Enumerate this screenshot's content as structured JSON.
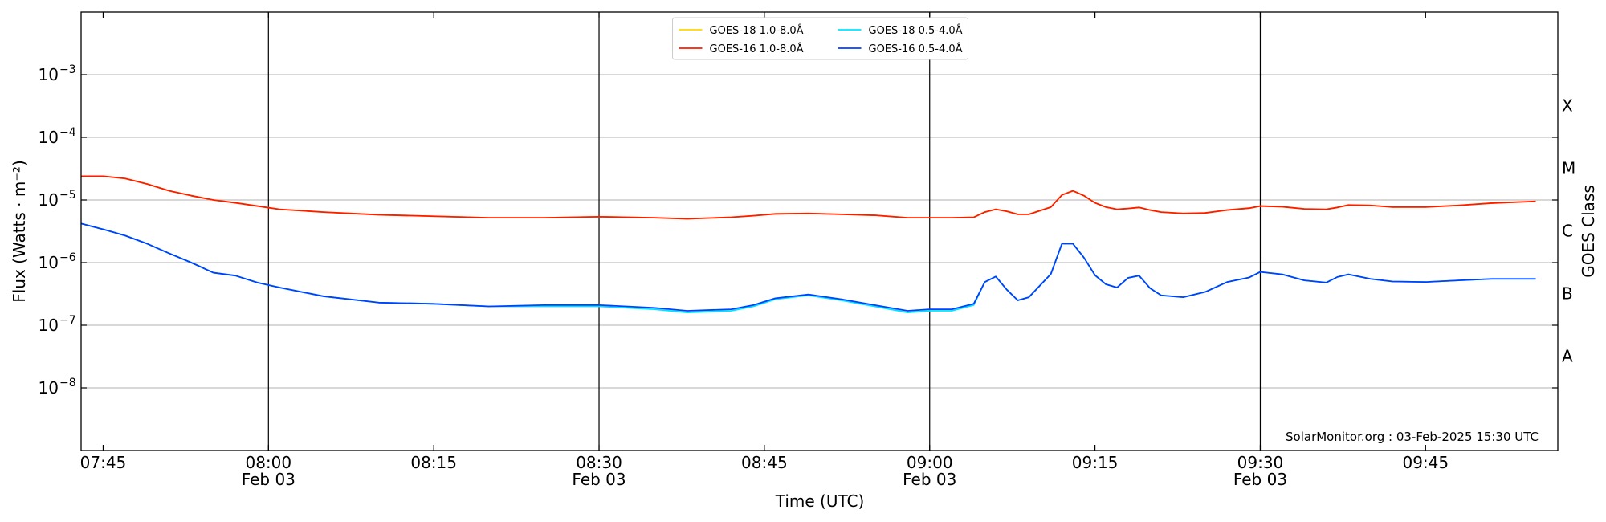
{
  "chart_data": {
    "type": "line",
    "xlabel": "Time (UTC)",
    "ylabel": "Flux (Watts · m⁻²)",
    "right_ylabel": "GOES Class",
    "annotation": "SolarMonitor.org : 03-Feb-2025 15:30 UTC",
    "log_scale": true,
    "grid": true,
    "legend": "upper center",
    "x": [
      "07:43",
      "07:45",
      "07:47",
      "07:49",
      "07:51",
      "07:53",
      "07:55",
      "07:57",
      "07:59",
      "08:01",
      "08:05",
      "08:10",
      "08:15",
      "08:20",
      "08:25",
      "08:30",
      "08:35",
      "08:38",
      "08:42",
      "08:44",
      "08:46",
      "08:49",
      "08:52",
      "08:55",
      "08:58",
      "09:00",
      "09:02",
      "09:04",
      "09:05",
      "09:06",
      "09:07",
      "09:08",
      "09:09",
      "09:11",
      "09:12",
      "09:13",
      "09:14",
      "09:15",
      "09:16",
      "09:17",
      "09:18",
      "09:19",
      "09:20",
      "09:21",
      "09:23",
      "09:25",
      "09:27",
      "09:29",
      "09:30",
      "09:32",
      "09:34",
      "09:36",
      "09:37",
      "09:38",
      "09:40",
      "09:42",
      "09:45",
      "09:48",
      "09:51",
      "09:55"
    ],
    "xlim": [
      "07:43",
      "09:57"
    ],
    "xticks": [
      "07:45",
      "08:00",
      "08:15",
      "08:30",
      "08:45",
      "09:00",
      "09:15",
      "09:30",
      "09:45"
    ],
    "date_labels": [
      {
        "x": "08:00",
        "label": "Feb 03"
      },
      {
        "x": "08:30",
        "label": "Feb 03"
      },
      {
        "x": "09:00",
        "label": "Feb 03"
      },
      {
        "x": "09:30",
        "label": "Feb 03"
      }
    ],
    "vlines": [
      "08:00",
      "08:30",
      "09:00",
      "09:30"
    ],
    "ylim": [
      1e-09,
      0.01
    ],
    "yticks": [
      {
        "value": 1e-08,
        "label": "10",
        "exponent": "−8"
      },
      {
        "value": 1e-07,
        "label": "10",
        "exponent": "−7"
      },
      {
        "value": 1e-06,
        "label": "10",
        "exponent": "−6"
      },
      {
        "value": 1e-05,
        "label": "10",
        "exponent": "−5"
      },
      {
        "value": 0.0001,
        "label": "10",
        "exponent": "−4"
      },
      {
        "value": 0.001,
        "label": "10",
        "exponent": "−3"
      }
    ],
    "class_labels": [
      {
        "value": 3.2e-08,
        "label": "A"
      },
      {
        "value": 3.2e-07,
        "label": "B"
      },
      {
        "value": 3.2e-06,
        "label": "C"
      },
      {
        "value": 3.2e-05,
        "label": "M"
      },
      {
        "value": 0.00032,
        "label": "X"
      }
    ],
    "series": [
      {
        "name": "GOES-18 1.0-8.0Å",
        "color": "#ffd700",
        "values": [
          2.4e-05,
          2.4e-05,
          2.2e-05,
          1.8e-05,
          1.4e-05,
          1.17e-05,
          1e-05,
          9e-06,
          8e-06,
          7.1e-06,
          6.4e-06,
          5.8e-06,
          5.5e-06,
          5.2e-06,
          5.2e-06,
          5.4e-06,
          5.2e-06,
          5e-06,
          5.3e-06,
          5.6e-06,
          6e-06,
          6.1e-06,
          5.9e-06,
          5.7e-06,
          5.2e-06,
          5.2e-06,
          5.2e-06,
          5.3e-06,
          6.4e-06,
          7.1e-06,
          6.6e-06,
          5.9e-06,
          5.9e-06,
          7.7e-06,
          1.2e-05,
          1.4e-05,
          1.17e-05,
          9e-06,
          7.7e-06,
          7.1e-06,
          7.3e-06,
          7.6e-06,
          6.9e-06,
          6.4e-06,
          6.1e-06,
          6.2e-06,
          6.9e-06,
          7.4e-06,
          8e-06,
          7.8e-06,
          7.2e-06,
          7.1e-06,
          7.6e-06,
          8.3e-06,
          8.2e-06,
          7.7e-06,
          7.7e-06,
          8.2e-06,
          8.9e-06,
          9.5e-06
        ]
      },
      {
        "name": "GOES-16 1.0-8.0Å",
        "color": "#ff1a00",
        "values": [
          2.4e-05,
          2.4e-05,
          2.2e-05,
          1.8e-05,
          1.4e-05,
          1.17e-05,
          1e-05,
          9e-06,
          8e-06,
          7.1e-06,
          6.4e-06,
          5.8e-06,
          5.5e-06,
          5.2e-06,
          5.2e-06,
          5.4e-06,
          5.2e-06,
          5e-06,
          5.3e-06,
          5.6e-06,
          6e-06,
          6.1e-06,
          5.9e-06,
          5.7e-06,
          5.2e-06,
          5.2e-06,
          5.2e-06,
          5.3e-06,
          6.4e-06,
          7.1e-06,
          6.6e-06,
          5.9e-06,
          5.9e-06,
          7.7e-06,
          1.2e-05,
          1.4e-05,
          1.17e-05,
          9e-06,
          7.7e-06,
          7.1e-06,
          7.3e-06,
          7.6e-06,
          6.9e-06,
          6.4e-06,
          6.1e-06,
          6.2e-06,
          6.9e-06,
          7.4e-06,
          8e-06,
          7.8e-06,
          7.2e-06,
          7.1e-06,
          7.6e-06,
          8.3e-06,
          8.2e-06,
          7.7e-06,
          7.7e-06,
          8.2e-06,
          8.9e-06,
          9.5e-06
        ]
      },
      {
        "name": "GOES-18 0.5-4.0Å",
        "color": "#00e5ff",
        "values": [
          4.2e-06,
          3.4e-06,
          2.7e-06,
          2e-06,
          1.4e-06,
          1e-06,
          6.9e-07,
          6.2e-07,
          4.8e-07,
          4e-07,
          2.9e-07,
          2.3e-07,
          2.2e-07,
          2e-07,
          2e-07,
          2e-07,
          1.8e-07,
          1.6e-07,
          1.7e-07,
          2e-07,
          2.6e-07,
          3e-07,
          2.5e-07,
          2e-07,
          1.6e-07,
          1.7e-07,
          1.7e-07,
          2.1e-07,
          4.9e-07,
          6e-07,
          3.7e-07,
          2.5e-07,
          2.8e-07,
          6.6e-07,
          2e-06,
          2e-06,
          1.2e-06,
          6.3e-07,
          4.5e-07,
          4e-07,
          5.7e-07,
          6.2e-07,
          3.9e-07,
          3e-07,
          2.8e-07,
          3.4e-07,
          4.9e-07,
          5.8e-07,
          7.1e-07,
          6.5e-07,
          5.2e-07,
          4.8e-07,
          5.9e-07,
          6.5e-07,
          5.5e-07,
          5e-07,
          4.9e-07,
          5.2e-07,
          5.5e-07,
          5.5e-07
        ]
      },
      {
        "name": "GOES-16 0.5-4.0Å",
        "color": "#0040ff",
        "values": [
          4.2e-06,
          3.4e-06,
          2.7e-06,
          2e-06,
          1.4e-06,
          1e-06,
          6.9e-07,
          6.2e-07,
          4.8e-07,
          4e-07,
          2.9e-07,
          2.3e-07,
          2.2e-07,
          2e-07,
          2.1e-07,
          2.1e-07,
          1.9e-07,
          1.7e-07,
          1.8e-07,
          2.1e-07,
          2.7e-07,
          3.1e-07,
          2.6e-07,
          2.1e-07,
          1.7e-07,
          1.8e-07,
          1.8e-07,
          2.2e-07,
          4.9e-07,
          6e-07,
          3.7e-07,
          2.5e-07,
          2.8e-07,
          6.6e-07,
          2e-06,
          2e-06,
          1.2e-06,
          6.3e-07,
          4.5e-07,
          4e-07,
          5.7e-07,
          6.2e-07,
          3.9e-07,
          3e-07,
          2.8e-07,
          3.4e-07,
          4.9e-07,
          5.8e-07,
          7.1e-07,
          6.5e-07,
          5.2e-07,
          4.8e-07,
          5.9e-07,
          6.5e-07,
          5.5e-07,
          5e-07,
          4.9e-07,
          5.2e-07,
          5.5e-07,
          5.5e-07
        ]
      }
    ]
  }
}
